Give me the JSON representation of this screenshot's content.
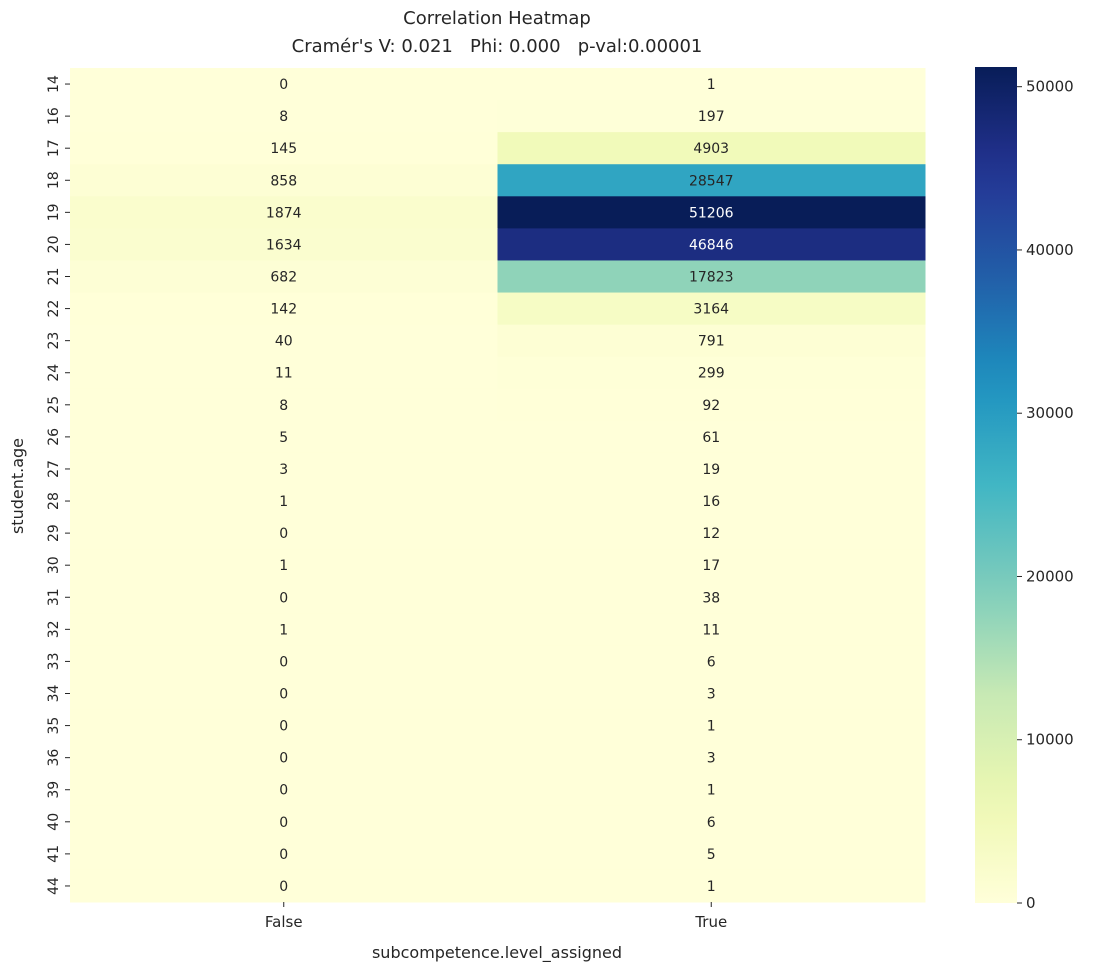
{
  "chart_data": {
    "type": "heatmap",
    "title": "Correlation Heatmap",
    "subtitle": "Cramér's V: 0.021   Phi: 0.000   p-val:0.00001",
    "xlabel": "subcompetence.level_assigned",
    "ylabel": "student.age",
    "x_categories": [
      "False",
      "True"
    ],
    "y_categories": [
      "14",
      "16",
      "17",
      "18",
      "19",
      "20",
      "21",
      "22",
      "23",
      "24",
      "25",
      "26",
      "27",
      "28",
      "29",
      "30",
      "31",
      "32",
      "33",
      "34",
      "35",
      "36",
      "39",
      "40",
      "41",
      "44"
    ],
    "values": [
      [
        0,
        1
      ],
      [
        8,
        197
      ],
      [
        145,
        4903
      ],
      [
        858,
        28547
      ],
      [
        1874,
        51206
      ],
      [
        1634,
        46846
      ],
      [
        682,
        17823
      ],
      [
        142,
        3164
      ],
      [
        40,
        791
      ],
      [
        11,
        299
      ],
      [
        8,
        92
      ],
      [
        5,
        61
      ],
      [
        3,
        19
      ],
      [
        1,
        16
      ],
      [
        0,
        12
      ],
      [
        1,
        17
      ],
      [
        0,
        38
      ],
      [
        1,
        11
      ],
      [
        0,
        6
      ],
      [
        0,
        3
      ],
      [
        0,
        1
      ],
      [
        0,
        3
      ],
      [
        0,
        1
      ],
      [
        0,
        6
      ],
      [
        0,
        5
      ],
      [
        0,
        1
      ]
    ],
    "colormap": "YlGnBu",
    "vmin": 0,
    "vmax": 51206,
    "colorbar_ticks": [
      0,
      10000,
      20000,
      30000,
      40000,
      50000
    ],
    "colorbar_tick_labels": [
      "0",
      "10000",
      "20000",
      "30000",
      "40000",
      "50000"
    ],
    "grid": false,
    "legend": "colorbar-right"
  }
}
